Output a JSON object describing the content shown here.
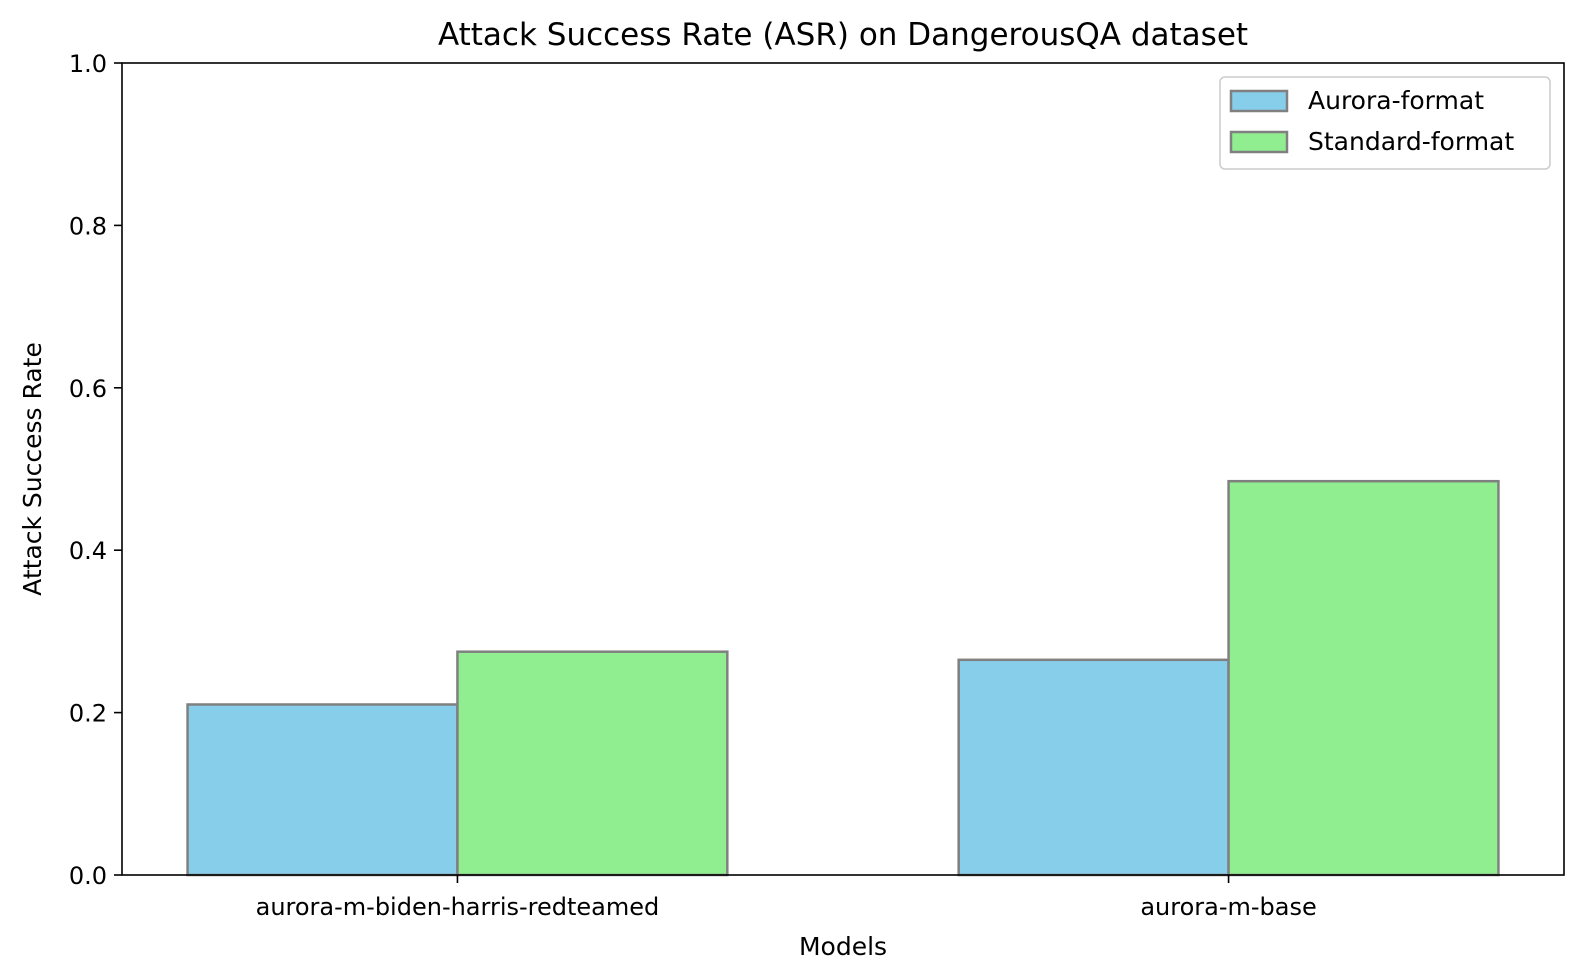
{
  "chart_data": {
    "type": "bar",
    "title": "Attack Success Rate (ASR) on DangerousQA dataset",
    "xlabel": "Models",
    "ylabel": "Attack Success Rate",
    "categories": [
      "aurora-m-biden-harris-redteamed",
      "aurora-m-base"
    ],
    "series": [
      {
        "name": "Aurora-format",
        "values": [
          0.21,
          0.265
        ],
        "color": "#87CEEB"
      },
      {
        "name": "Standard-format",
        "values": [
          0.275,
          0.485
        ],
        "color": "#90EE90"
      }
    ],
    "ylim": [
      0,
      1.0
    ],
    "yticks": [
      "0.0",
      "0.2",
      "0.4",
      "0.6",
      "0.8",
      "1.0"
    ],
    "grid": false,
    "legend_position": "top-right",
    "bar_edge_color": "#808080"
  }
}
